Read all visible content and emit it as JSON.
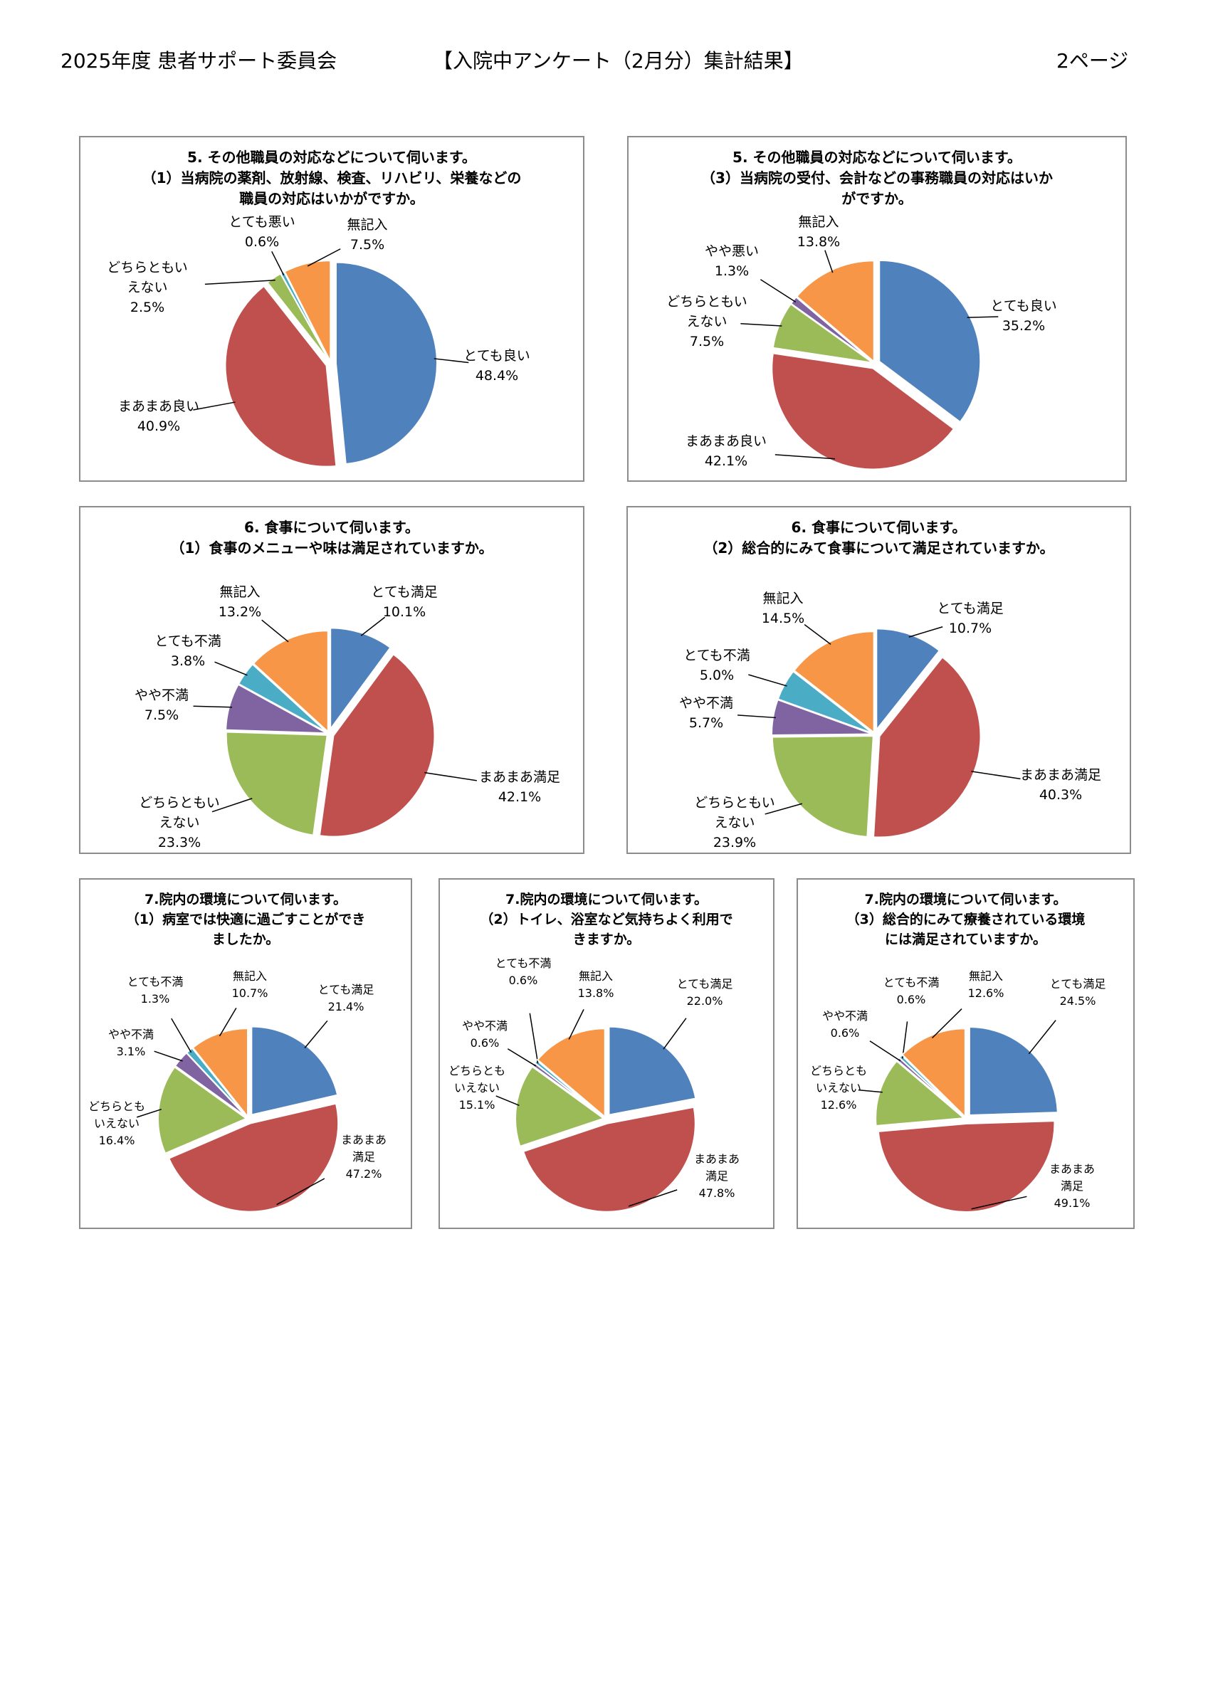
{
  "header": {
    "left": "2025年度 患者サポート委員会",
    "center": "【入院中アンケート（2月分）集計結果】",
    "right": "2ページ"
  },
  "colors": {
    "blue": "#4F81BD",
    "red": "#C0504D",
    "green": "#9BBB59",
    "purple": "#8064A2",
    "cyan": "#4BACC6",
    "orange": "#F79646"
  },
  "chart_data": [
    {
      "type": "pie",
      "title": "5. その他職員の対応などについて伺います。\n（1）当病院の薬剤、放射線、検査、リハビリ、栄養などの\n職員の対応はいかがですか。",
      "slices": [
        {
          "label": "とても良い",
          "value": 48.4,
          "value_label": "48.4%",
          "color": "#4F81BD"
        },
        {
          "label": "まあまあ良い",
          "value": 40.9,
          "value_label": "40.9%",
          "color": "#C0504D"
        },
        {
          "label": "どちらともい\nえない",
          "value": 2.5,
          "value_label": "2.5%",
          "color": "#9BBB59"
        },
        {
          "label": "とても悪い",
          "value": 0.6,
          "value_label": "0.6%",
          "color": "#4BACC6"
        },
        {
          "label": "無記入",
          "value": 7.5,
          "value_label": "7.5%",
          "color": "#F79646"
        }
      ]
    },
    {
      "type": "pie",
      "title": "5. その他職員の対応などについて伺います。\n（3）当病院の受付、会計などの事務職員の対応はいか\nがですか。",
      "slices": [
        {
          "label": "とても良い",
          "value": 35.2,
          "value_label": "35.2%",
          "color": "#4F81BD"
        },
        {
          "label": "まあまあ良い",
          "value": 42.1,
          "value_label": "42.1%",
          "color": "#C0504D"
        },
        {
          "label": "どちらともい\nえない",
          "value": 7.5,
          "value_label": "7.5%",
          "color": "#9BBB59"
        },
        {
          "label": "やや悪い",
          "value": 1.3,
          "value_label": "1.3%",
          "color": "#8064A2"
        },
        {
          "label": "無記入",
          "value": 13.8,
          "value_label": "13.8%",
          "color": "#F79646"
        }
      ]
    },
    {
      "type": "pie",
      "title": "6. 食事について伺います。\n（1）食事のメニューや味は満足されていますか。",
      "slices": [
        {
          "label": "とても満足",
          "value": 10.1,
          "value_label": "10.1%",
          "color": "#4F81BD"
        },
        {
          "label": "まあまあ満足",
          "value": 42.1,
          "value_label": "42.1%",
          "color": "#C0504D"
        },
        {
          "label": "どちらともい\nえない",
          "value": 23.3,
          "value_label": "23.3%",
          "color": "#9BBB59"
        },
        {
          "label": "やや不満",
          "value": 7.5,
          "value_label": "7.5%",
          "color": "#8064A2"
        },
        {
          "label": "とても不満",
          "value": 3.8,
          "value_label": "3.8%",
          "color": "#4BACC6"
        },
        {
          "label": "無記入",
          "value": 13.2,
          "value_label": "13.2%",
          "color": "#F79646"
        }
      ]
    },
    {
      "type": "pie",
      "title": "6. 食事について伺います。\n（2）総合的にみて食事について満足されていますか。",
      "slices": [
        {
          "label": "とても満足",
          "value": 10.7,
          "value_label": "10.7%",
          "color": "#4F81BD"
        },
        {
          "label": "まあまあ満足",
          "value": 40.3,
          "value_label": "40.3%",
          "color": "#C0504D"
        },
        {
          "label": "どちらともい\nえない",
          "value": 23.9,
          "value_label": "23.9%",
          "color": "#9BBB59"
        },
        {
          "label": "やや不満",
          "value": 5.7,
          "value_label": "5.7%",
          "color": "#8064A2"
        },
        {
          "label": "とても不満",
          "value": 5.0,
          "value_label": "5.0%",
          "color": "#4BACC6"
        },
        {
          "label": "無記入",
          "value": 14.5,
          "value_label": "14.5%",
          "color": "#F79646"
        }
      ]
    },
    {
      "type": "pie",
      "title": "7.院内の環境について伺います。\n（1）病室では快適に過ごすことができ\nましたか。",
      "slices": [
        {
          "label": "とても満足",
          "value": 21.4,
          "value_label": "21.4%",
          "color": "#4F81BD"
        },
        {
          "label": "まあまあ\n満足",
          "value": 47.2,
          "value_label": "47.2%",
          "color": "#C0504D"
        },
        {
          "label": "どちらとも\nいえない",
          "value": 16.4,
          "value_label": "16.4%",
          "color": "#9BBB59"
        },
        {
          "label": "やや不満",
          "value": 3.1,
          "value_label": "3.1%",
          "color": "#8064A2"
        },
        {
          "label": "とても不満",
          "value": 1.3,
          "value_label": "1.3%",
          "color": "#4BACC6"
        },
        {
          "label": "無記入",
          "value": 10.7,
          "value_label": "10.7%",
          "color": "#F79646"
        }
      ]
    },
    {
      "type": "pie",
      "title": "7.院内の環境について伺います。\n（2）トイレ、浴室など気持ちよく利用で\nきますか。",
      "slices": [
        {
          "label": "とても満足",
          "value": 22.0,
          "value_label": "22.0%",
          "color": "#4F81BD"
        },
        {
          "label": "まあまあ\n満足",
          "value": 47.8,
          "value_label": "47.8%",
          "color": "#C0504D"
        },
        {
          "label": "どちらとも\nいえない",
          "value": 15.1,
          "value_label": "15.1%",
          "color": "#9BBB59"
        },
        {
          "label": "やや不満",
          "value": 0.6,
          "value_label": "0.6%",
          "color": "#8064A2"
        },
        {
          "label": "とても不満",
          "value": 0.6,
          "value_label": "0.6%",
          "color": "#4BACC6"
        },
        {
          "label": "無記入",
          "value": 13.8,
          "value_label": "13.8%",
          "color": "#F79646"
        }
      ]
    },
    {
      "type": "pie",
      "title": "7.院内の環境について伺います。\n（3）総合的にみて療養されている環境\nには満足されていますか。",
      "slices": [
        {
          "label": "とても満足",
          "value": 24.5,
          "value_label": "24.5%",
          "color": "#4F81BD"
        },
        {
          "label": "まあまあ\n満足",
          "value": 49.1,
          "value_label": "49.1%",
          "color": "#C0504D"
        },
        {
          "label": "どちらとも\nいえない",
          "value": 12.6,
          "value_label": "12.6%",
          "color": "#9BBB59"
        },
        {
          "label": "やや不満",
          "value": 0.6,
          "value_label": "0.6%",
          "color": "#8064A2"
        },
        {
          "label": "とても不満",
          "value": 0.6,
          "value_label": "0.6%",
          "color": "#4BACC6"
        },
        {
          "label": "無記入",
          "value": 12.6,
          "value_label": "12.6%",
          "color": "#F79646"
        }
      ]
    }
  ]
}
